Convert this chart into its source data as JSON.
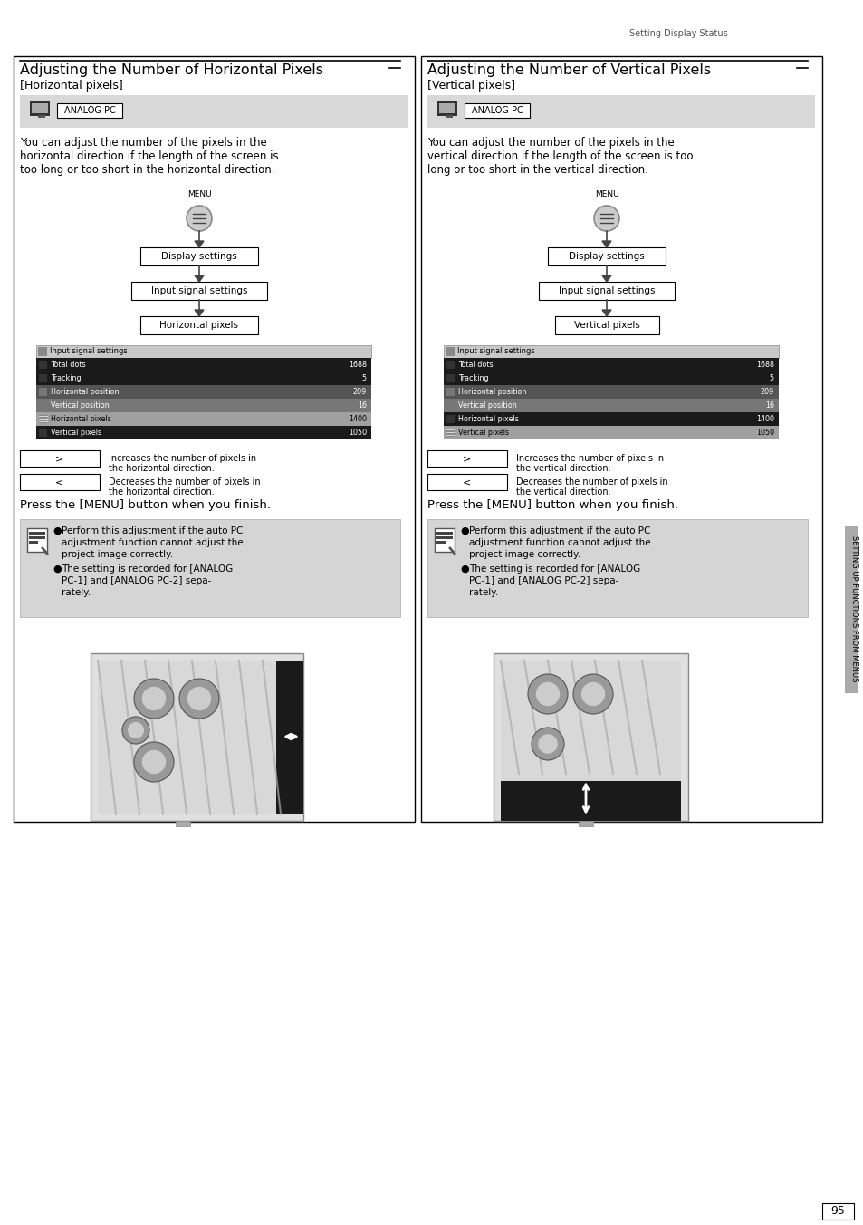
{
  "page_header": "Setting Display Status",
  "left_title": "Adjusting the Number of Horizontal Pixels",
  "left_subtitle": "[Horizontal pixels]",
  "right_title": "Adjusting the Number of Vertical Pixels",
  "right_subtitle": "[Vertical pixels]",
  "analog_pc_label": "ANALOG PC",
  "left_desc_lines": [
    "You can adjust the number of the pixels in the",
    "horizontal direction if the length of the screen is",
    "too long or too short in the horizontal direction."
  ],
  "right_desc_lines": [
    "You can adjust the number of the pixels in the",
    "vertical direction if the length of the screen is too",
    "long or too short in the vertical direction."
  ],
  "menu_label": "MENU",
  "left_flow_end": "Horizontal pixels",
  "right_flow_end": "Vertical pixels",
  "table_header": "Input signal settings",
  "table_rows": [
    [
      "Total dots",
      "1688"
    ],
    [
      "Tracking",
      "5"
    ],
    [
      "Horizontal position",
      "209"
    ],
    [
      "Vertical position",
      "16"
    ],
    [
      "Horizontal pixels",
      "1400"
    ],
    [
      "Vertical pixels",
      "1050"
    ]
  ],
  "left_btn_increase": [
    "Increases the number of pixels in",
    "the horizontal direction."
  ],
  "left_btn_decrease": [
    "Decreases the number of pixels in",
    "the horizontal direction."
  ],
  "right_btn_increase": [
    "Increases the number of pixels in",
    "the vertical direction."
  ],
  "right_btn_decrease": [
    "Decreases the number of pixels in",
    "the vertical direction."
  ],
  "press_menu_text": "Press the [MENU] button when you finish.",
  "note_bullet1_lines": [
    "Perform this adjustment if the auto PC",
    "adjustment function cannot adjust the",
    "project image correctly."
  ],
  "note_bullet2_lines": [
    "The setting is recorded for [ANALOG",
    "PC-1] and [ANALOG PC-2] sepa-",
    "rately."
  ],
  "page_number": "95",
  "side_text": "SETTING UP FUNCTIONS FROM MENUS"
}
